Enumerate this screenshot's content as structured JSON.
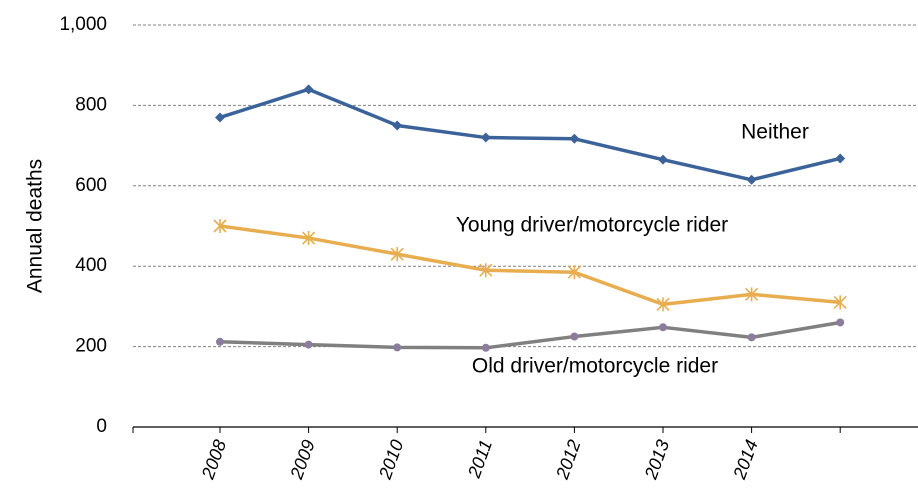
{
  "chart_data": {
    "type": "line",
    "y_label": "Annual deaths",
    "categories": [
      "2008",
      "2009",
      "2010",
      "2011",
      "2012",
      "2013",
      "2014",
      null
    ],
    "series": [
      {
        "name": "Neither",
        "color": "#3c6399",
        "marker": "diamond",
        "values": [
          770,
          840,
          750,
          720,
          717,
          665,
          615,
          668
        ]
      },
      {
        "name": "Young driver/motorcycle rider",
        "color": "#e8ad4f",
        "marker": "asterisk",
        "values": [
          500,
          470,
          430,
          390,
          385,
          305,
          330,
          310
        ]
      },
      {
        "name": "Old driver/motorcycle rider",
        "color": "#808080",
        "marker": "circle",
        "marker_color": "#8b7d9b",
        "values": [
          212,
          205,
          198,
          197,
          225,
          248,
          223,
          260
        ]
      }
    ],
    "ylim": [
      0,
      1000
    ],
    "yticks": [
      0,
      200,
      400,
      600,
      800,
      {
        "value": 1000,
        "label": "1,000"
      }
    ],
    "grid": true
  }
}
